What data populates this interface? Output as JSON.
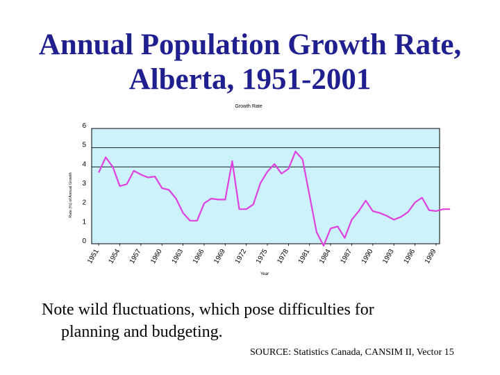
{
  "slide": {
    "title_line1": "Annual Population Growth Rate,",
    "title_line2": "Alberta, 1951-2001",
    "note_line1": "Note wild fluctuations, which pose difficulties for",
    "note_line2": "planning and budgeting.",
    "source": "SOURCE:  Statistics Canada, CANSIM II, Vector 15"
  },
  "chart_data": {
    "type": "line",
    "title": "Growth Rate",
    "xlabel": "Year",
    "ylabel": "Rate (%) of Annual Growth",
    "ylim": [
      0,
      6
    ],
    "yticks": [
      0,
      1,
      2,
      3,
      4,
      5,
      6
    ],
    "xlim": [
      1950,
      1999.5
    ],
    "xticks": [
      1951,
      1954,
      1957,
      1960,
      1963,
      1966,
      1969,
      1972,
      1975,
      1978,
      1981,
      1984,
      1987,
      1990,
      1993,
      1996,
      1999
    ],
    "gridlines_y": [
      4,
      5
    ],
    "colors": {
      "plot_bg": "#ccf2fb",
      "line": "#e040e0",
      "title": "#1f1f8f"
    },
    "series": [
      {
        "name": "Growth Rate",
        "x": [
          1951,
          1952,
          1953,
          1954,
          1955,
          1956,
          1957,
          1958,
          1959,
          1960,
          1961,
          1962,
          1963,
          1964,
          1965,
          1966,
          1967,
          1968,
          1969,
          1970,
          1971,
          1972,
          1973,
          1974,
          1975,
          1976,
          1977,
          1978,
          1979,
          1980,
          1981,
          1982,
          1983,
          1984,
          1985,
          1986,
          1987,
          1988,
          1989,
          1990,
          1991,
          1992,
          1993,
          1994,
          1995,
          1996,
          1997,
          1998,
          1999,
          2000,
          2001
        ],
        "values": [
          3.7,
          4.5,
          4.0,
          3.0,
          3.1,
          3.8,
          3.6,
          3.45,
          3.5,
          2.9,
          2.8,
          2.35,
          1.6,
          1.2,
          1.2,
          2.1,
          2.35,
          2.3,
          2.3,
          4.3,
          1.8,
          1.8,
          2.05,
          3.15,
          3.75,
          4.15,
          3.65,
          3.9,
          4.8,
          4.4,
          2.5,
          0.6,
          -0.1,
          0.8,
          0.9,
          0.3,
          1.25,
          1.7,
          2.25,
          1.7,
          1.6,
          1.45,
          1.25,
          1.4,
          1.65,
          2.15,
          2.4,
          1.75,
          1.7,
          1.8,
          1.8
        ]
      }
    ]
  }
}
